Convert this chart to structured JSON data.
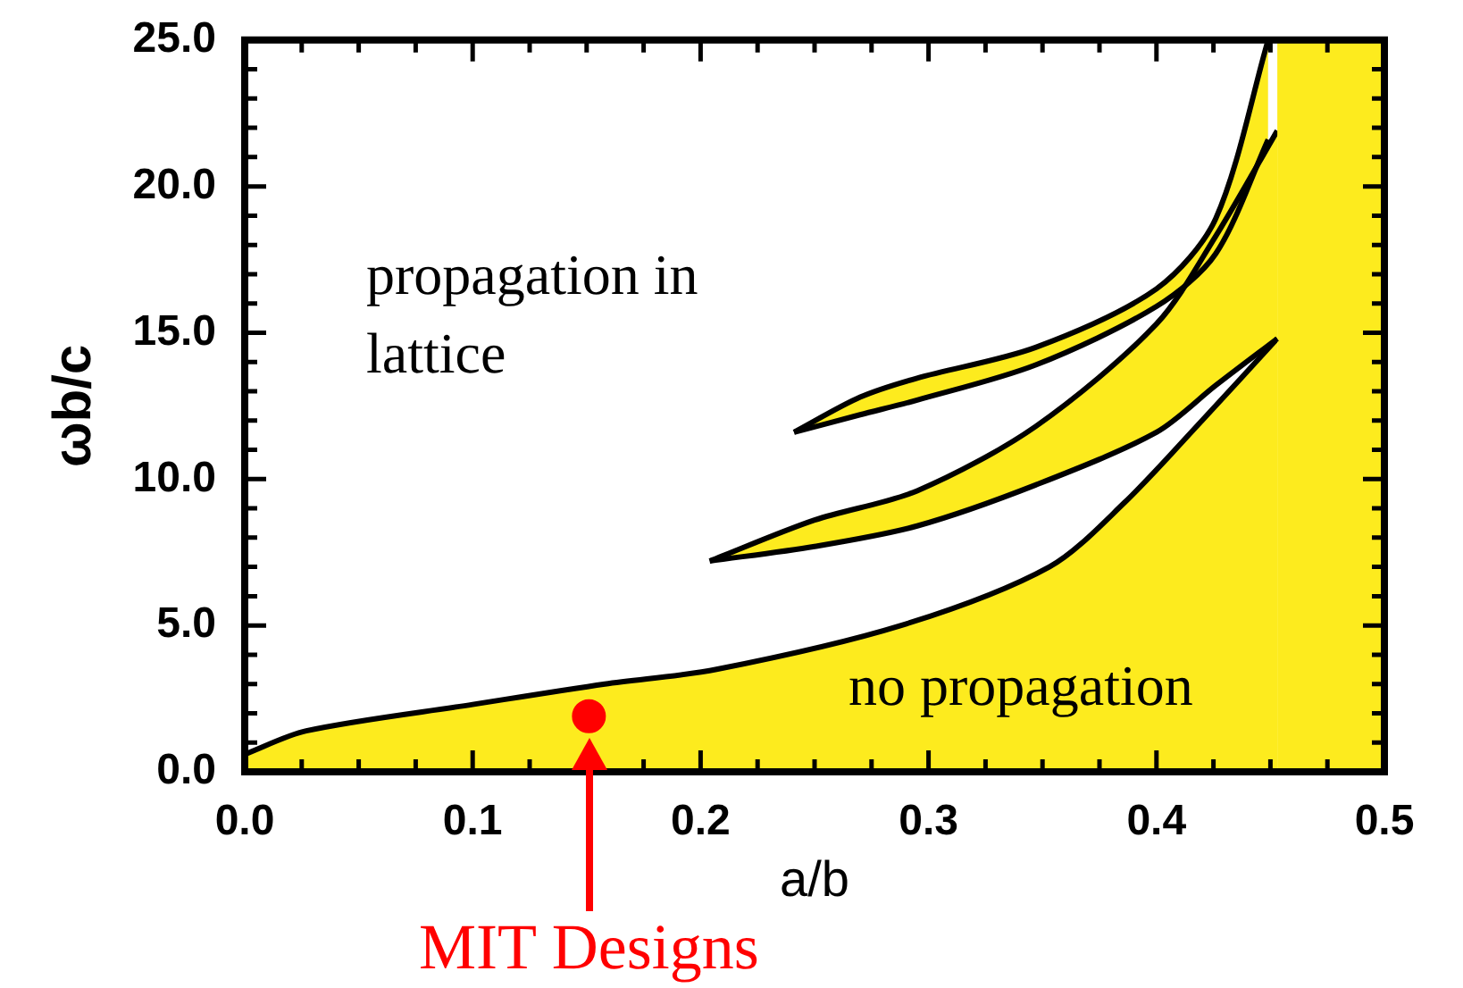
{
  "chart_data": {
    "type": "area",
    "xlabel": "a/b",
    "ylabel": "ωb/c",
    "xlim": [
      0,
      0.5
    ],
    "ylim": [
      0,
      25
    ],
    "xticks": [
      {
        "value": 0,
        "label": "0.0"
      },
      {
        "value": 0.025,
        "label": null
      },
      {
        "value": 0.05,
        "label": null
      },
      {
        "value": 0.075,
        "label": null
      },
      {
        "value": 0.1,
        "label": "0.1"
      },
      {
        "value": 0.125,
        "label": null
      },
      {
        "value": 0.15,
        "label": null
      },
      {
        "value": 0.175,
        "label": null
      },
      {
        "value": 0.2,
        "label": "0.2"
      },
      {
        "value": 0.225,
        "label": null
      },
      {
        "value": 0.25,
        "label": null
      },
      {
        "value": 0.275,
        "label": null
      },
      {
        "value": 0.3,
        "label": "0.3"
      },
      {
        "value": 0.325,
        "label": null
      },
      {
        "value": 0.35,
        "label": null
      },
      {
        "value": 0.375,
        "label": null
      },
      {
        "value": 0.4,
        "label": "0.4"
      },
      {
        "value": 0.425,
        "label": null
      },
      {
        "value": 0.45,
        "label": null
      },
      {
        "value": 0.475,
        "label": null
      },
      {
        "value": 0.5,
        "label": "0.5"
      }
    ],
    "yticks": [
      {
        "value": 0,
        "label": "0.0"
      },
      {
        "value": 1,
        "label": null
      },
      {
        "value": 2,
        "label": null
      },
      {
        "value": 3,
        "label": null
      },
      {
        "value": 4,
        "label": null
      },
      {
        "value": 5,
        "label": "5.0"
      },
      {
        "value": 6,
        "label": null
      },
      {
        "value": 7,
        "label": null
      },
      {
        "value": 8,
        "label": null
      },
      {
        "value": 9,
        "label": null
      },
      {
        "value": 10,
        "label": "10.0"
      },
      {
        "value": 11,
        "label": null
      },
      {
        "value": 12,
        "label": null
      },
      {
        "value": 13,
        "label": null
      },
      {
        "value": 14,
        "label": null
      },
      {
        "value": 15,
        "label": "15.0"
      },
      {
        "value": 16,
        "label": null
      },
      {
        "value": 17,
        "label": null
      },
      {
        "value": 18,
        "label": null
      },
      {
        "value": 19,
        "label": null
      },
      {
        "value": 20,
        "label": "20.0"
      },
      {
        "value": 21,
        "label": null
      },
      {
        "value": 22,
        "label": null
      },
      {
        "value": 23,
        "label": null
      },
      {
        "value": 24,
        "label": null
      },
      {
        "value": 25,
        "label": "25.0"
      }
    ],
    "grid": false,
    "series": [
      {
        "color": "#fdeb1e",
        "x": [
          0.453,
          0.5
        ],
        "values": [
          25,
          25
        ]
      },
      {
        "color": "#fdeb1e",
        "x": [
          0,
          0.027,
          0.1,
          0.158,
          0.207,
          0.288,
          0.353,
          0.386,
          0.42,
          0.453
        ],
        "values": [
          0.6,
          1.4,
          2.3,
          3.0,
          3.5,
          5.0,
          7.0,
          9.2,
          12.0,
          14.8
        ]
      },
      {
        "type": "line",
        "color": "#000000",
        "x": [
          0.204,
          0.25,
          0.295,
          0.347,
          0.4,
          0.426,
          0.453
        ],
        "values": [
          7.2,
          7.7,
          8.4,
          9.8,
          11.6,
          13.2,
          14.8
        ]
      },
      {
        "color": "#fdeb1e",
        "x": [
          0.204,
          0.25,
          0.295,
          0.347,
          0.4,
          0.426,
          0.453
        ],
        "values": [
          7.2,
          8.6,
          9.6,
          11.8,
          15.3,
          18.3,
          21.9
        ]
      },
      {
        "type": "line",
        "color": "#000000",
        "x": [
          0.241,
          0.27,
          0.295,
          0.347,
          0.4,
          0.426,
          0.449
        ],
        "values": [
          11.6,
          12.2,
          12.7,
          13.9,
          15.9,
          17.7,
          21.6
        ]
      },
      {
        "color": "#fdeb1e",
        "x": [
          0.241,
          0.27,
          0.295,
          0.347,
          0.4,
          0.426,
          0.449
        ],
        "values": [
          11.6,
          12.8,
          13.45,
          14.5,
          16.5,
          18.9,
          25
        ]
      },
      {
        "type": "scatter",
        "name": "MIT Designs",
        "color": "#ff0000",
        "marker": "circle",
        "x": [
          0.151
        ],
        "values": [
          1.9
        ]
      }
    ],
    "annotations": [
      "propagation in lattice",
      "no propagation"
    ]
  }
}
